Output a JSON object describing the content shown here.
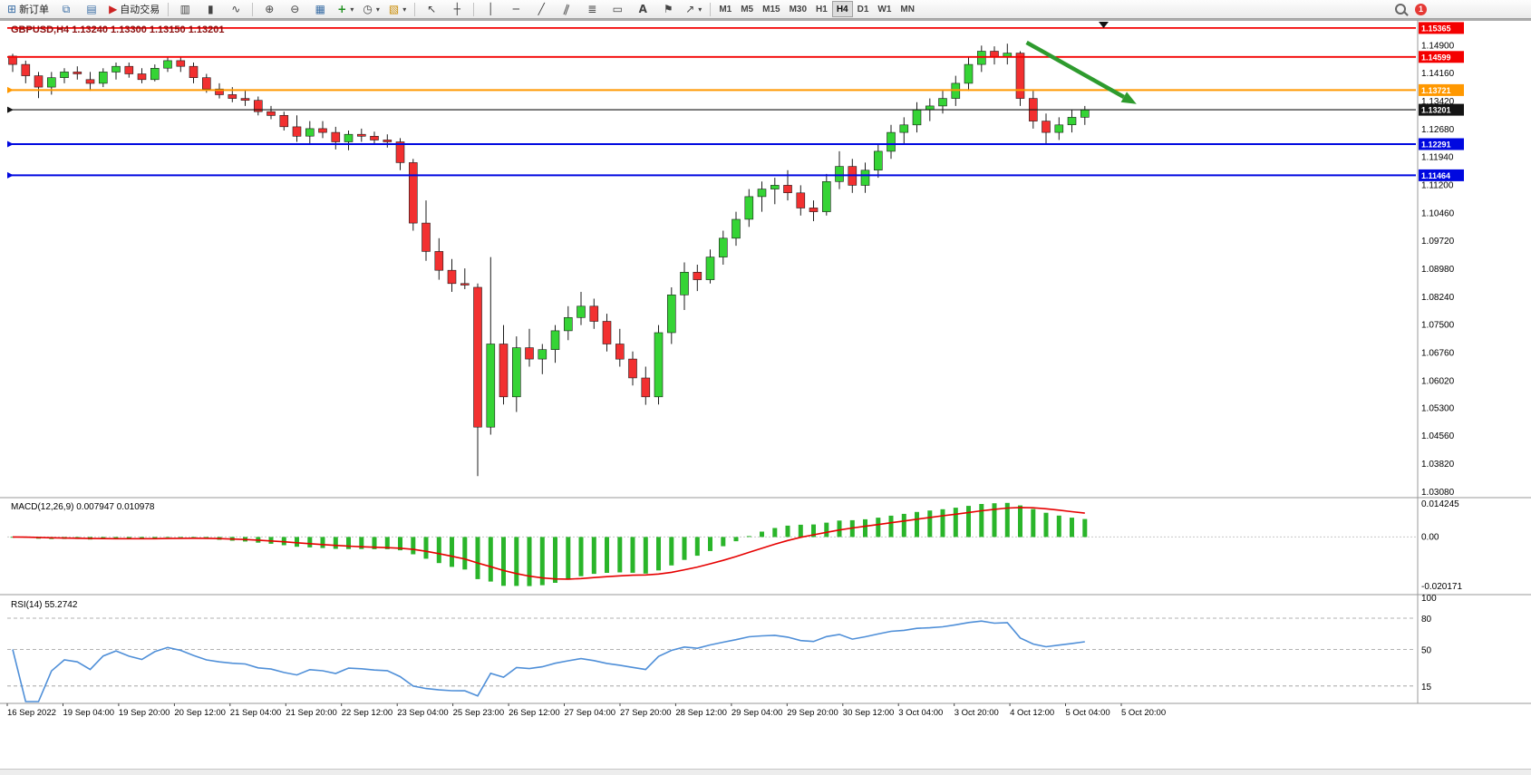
{
  "toolbar": {
    "new_order_label": "新订单",
    "autotrading_label": "自动交易",
    "timeframes": [
      "M1",
      "M5",
      "M15",
      "M30",
      "H1",
      "H4",
      "D1",
      "W1",
      "MN"
    ],
    "active_timeframe": "H4",
    "notification_badge": "1"
  },
  "icons": {
    "new_order": "⊞",
    "charts": "⧉",
    "data_window": "▤",
    "autotrading": "▶",
    "bar_chart": "▥",
    "candlestick_chart": "▮",
    "line_chart": "∿",
    "zoom_in": "⊕",
    "zoom_out": "⊖",
    "tile_windows": "▦",
    "indicators": "+",
    "periods": "◷",
    "templates": "▧",
    "dropdown": "▾",
    "cursor": "↖",
    "crosshair": "┼",
    "vline": "│",
    "hline": "─",
    "trendline": "╱",
    "channel": "∥",
    "fibonacci": "≣",
    "shapes": "▭",
    "text": "A",
    "label": "⚑",
    "arrows": "↗"
  },
  "chart_data": {
    "type": "candlestick",
    "symbol": "GBPUSD",
    "timeframe": "H4",
    "ohlc": {
      "open": "1.13240",
      "high": "1.13300",
      "low": "1.13150",
      "close": "1.13201"
    },
    "price_axis": {
      "max": 1.1553,
      "min": 1.0298
    },
    "price_axis_labels": [
      "1.14900",
      "1.14160",
      "1.13420",
      "1.12680",
      "1.11940",
      "1.11200",
      "1.10460",
      "1.09720",
      "1.08980",
      "1.08240",
      "1.07500",
      "1.06760",
      "1.06020",
      "1.05300",
      "1.04560",
      "1.03820",
      "1.03080"
    ],
    "hlines": [
      {
        "price": 1.15365,
        "label": "1.15365",
        "color": "#f40000",
        "width": 1.8,
        "left_marker": false
      },
      {
        "price": 1.14599,
        "label": "1.14599",
        "color": "#f40000",
        "width": 1.8,
        "left_marker": false
      },
      {
        "price": 1.13721,
        "label": "1.13721",
        "color": "#ff9800",
        "width": 2.0,
        "left_marker": true
      },
      {
        "price": 1.13201,
        "label": "1.13201",
        "color": "#141414",
        "width": 1.1,
        "left_marker": true
      },
      {
        "price": 1.12291,
        "label": "1.12291",
        "color": "#0008e0",
        "width": 2.0,
        "left_marker": true
      },
      {
        "price": 1.11464,
        "label": "1.11464",
        "color": "#0008e0",
        "width": 2.0,
        "left_marker": true
      }
    ],
    "candles": [
      [
        1.1462,
        1.1468,
        1.142,
        1.144
      ],
      [
        1.144,
        1.145,
        1.139,
        1.141
      ],
      [
        1.141,
        1.142,
        1.1351,
        1.138
      ],
      [
        1.138,
        1.142,
        1.136,
        1.1405
      ],
      [
        1.1405,
        1.143,
        1.139,
        1.142
      ],
      [
        1.142,
        1.1435,
        1.14,
        1.1415
      ],
      [
        1.14,
        1.142,
        1.137,
        1.139
      ],
      [
        1.139,
        1.143,
        1.138,
        1.142
      ],
      [
        1.142,
        1.1445,
        1.14,
        1.1435
      ],
      [
        1.1435,
        1.1445,
        1.1405,
        1.1415
      ],
      [
        1.1415,
        1.143,
        1.139,
        1.14
      ],
      [
        1.14,
        1.144,
        1.1395,
        1.143
      ],
      [
        1.143,
        1.146,
        1.142,
        1.145
      ],
      [
        1.145,
        1.146,
        1.142,
        1.1435
      ],
      [
        1.1435,
        1.1445,
        1.139,
        1.1405
      ],
      [
        1.1405,
        1.1415,
        1.1365,
        1.1375
      ],
      [
        1.1375,
        1.139,
        1.135,
        1.136
      ],
      [
        1.136,
        1.138,
        1.134,
        1.135
      ],
      [
        1.135,
        1.137,
        1.133,
        1.1345
      ],
      [
        1.1345,
        1.1355,
        1.1305,
        1.1315
      ],
      [
        1.1315,
        1.133,
        1.1295,
        1.1305
      ],
      [
        1.1305,
        1.1315,
        1.1265,
        1.1275
      ],
      [
        1.1275,
        1.1305,
        1.1235,
        1.125
      ],
      [
        1.125,
        1.129,
        1.123,
        1.127
      ],
      [
        1.127,
        1.129,
        1.1245,
        1.126
      ],
      [
        1.126,
        1.1275,
        1.1215,
        1.1235
      ],
      [
        1.1235,
        1.1265,
        1.1213,
        1.1255
      ],
      [
        1.1255,
        1.127,
        1.1235,
        1.125
      ],
      [
        1.125,
        1.1262,
        1.123,
        1.124
      ],
      [
        1.124,
        1.1255,
        1.122,
        1.1235
      ],
      [
        1.1235,
        1.1245,
        1.116,
        1.118
      ],
      [
        1.118,
        1.119,
        1.1,
        1.102
      ],
      [
        1.102,
        1.108,
        1.092,
        1.0945
      ],
      [
        1.0945,
        1.098,
        1.087,
        1.0895
      ],
      [
        1.0895,
        1.0925,
        1.0838,
        1.086
      ],
      [
        1.086,
        1.09,
        1.0845,
        1.0856
      ],
      [
        1.085,
        1.086,
        1.035,
        1.048
      ],
      [
        1.048,
        1.093,
        1.046,
        1.07
      ],
      [
        1.07,
        1.075,
        1.054,
        1.056
      ],
      [
        1.056,
        1.072,
        1.052,
        1.069
      ],
      [
        1.069,
        1.074,
        1.064,
        1.066
      ],
      [
        1.066,
        1.07,
        1.062,
        1.0685
      ],
      [
        1.0685,
        1.075,
        1.065,
        1.0735
      ],
      [
        1.0735,
        1.08,
        1.071,
        1.077
      ],
      [
        1.077,
        1.0838,
        1.075,
        1.08
      ],
      [
        1.08,
        1.082,
        1.074,
        1.076
      ],
      [
        1.076,
        1.078,
        1.068,
        1.07
      ],
      [
        1.07,
        1.074,
        1.064,
        1.066
      ],
      [
        1.066,
        1.068,
        1.059,
        1.061
      ],
      [
        1.061,
        1.064,
        1.0539,
        1.056
      ],
      [
        1.056,
        1.075,
        1.054,
        1.073
      ],
      [
        1.073,
        1.085,
        1.07,
        1.083
      ],
      [
        1.083,
        1.0916,
        1.079,
        1.089
      ],
      [
        1.089,
        1.091,
        1.084,
        1.087
      ],
      [
        1.087,
        1.095,
        1.086,
        1.093
      ],
      [
        1.093,
        1.1,
        1.091,
        1.098
      ],
      [
        1.098,
        1.105,
        1.096,
        1.103
      ],
      [
        1.103,
        1.111,
        1.101,
        1.109
      ],
      [
        1.109,
        1.113,
        1.105,
        1.111
      ],
      [
        1.111,
        1.114,
        1.107,
        1.112
      ],
      [
        1.112,
        1.116,
        1.108,
        1.11
      ],
      [
        1.11,
        1.112,
        1.104,
        1.106
      ],
      [
        1.106,
        1.108,
        1.1025,
        1.105
      ],
      [
        1.105,
        1.115,
        1.104,
        1.113
      ],
      [
        1.113,
        1.121,
        1.111,
        1.117
      ],
      [
        1.117,
        1.119,
        1.11,
        1.112
      ],
      [
        1.112,
        1.118,
        1.11,
        1.116
      ],
      [
        1.116,
        1.123,
        1.114,
        1.121
      ],
      [
        1.121,
        1.128,
        1.119,
        1.126
      ],
      [
        1.126,
        1.13,
        1.123,
        1.128
      ],
      [
        1.128,
        1.134,
        1.126,
        1.132
      ],
      [
        1.132,
        1.135,
        1.129,
        1.133
      ],
      [
        1.133,
        1.137,
        1.131,
        1.135
      ],
      [
        1.135,
        1.141,
        1.133,
        1.139
      ],
      [
        1.139,
        1.146,
        1.137,
        1.144
      ],
      [
        1.144,
        1.149,
        1.142,
        1.1475
      ],
      [
        1.1475,
        1.1488,
        1.144,
        1.146
      ],
      [
        1.146,
        1.1495,
        1.144,
        1.147
      ],
      [
        1.147,
        1.1475,
        1.133,
        1.135
      ],
      [
        1.135,
        1.137,
        1.127,
        1.129
      ],
      [
        1.129,
        1.131,
        1.1227,
        1.126
      ],
      [
        1.126,
        1.13,
        1.124,
        1.128
      ],
      [
        1.128,
        1.132,
        1.126,
        1.13
      ],
      [
        1.13,
        1.133,
        1.128,
        1.132
      ]
    ],
    "time_labels": [
      "16 Sep 2022",
      "19 Sep 04:00",
      "19 Sep 20:00",
      "20 Sep 12:00",
      "21 Sep 04:00",
      "21 Sep 20:00",
      "22 Sep 12:00",
      "23 Sep 04:00",
      "25 Sep 23:00",
      "26 Sep 12:00",
      "27 Sep 04:00",
      "27 Sep 20:00",
      "28 Sep 12:00",
      "29 Sep 04:00",
      "29 Sep 20:00",
      "30 Sep 12:00",
      "3 Oct 04:00",
      "3 Oct 20:00",
      "4 Oct 12:00",
      "5 Oct 04:00",
      "5 Oct 20:00"
    ],
    "annotation_arrow": {
      "x1_index": 78.5,
      "price1": 1.1498,
      "x2_index": 87,
      "price2": 1.1335,
      "color": "#2e9b2e"
    },
    "macd": {
      "label": "MACD(12,26,9)",
      "values_text": "0.007947 0.010978",
      "params": [
        12,
        26,
        9
      ],
      "axis_labels": [
        "0.014245",
        "0.00",
        "-0.020171"
      ]
    },
    "rsi": {
      "label": "RSI(14)",
      "value_text": "55.2742",
      "period": 14,
      "levels": [
        80,
        50,
        15
      ],
      "axis_labels": [
        "100",
        "80",
        "50",
        "15"
      ]
    },
    "colors": {
      "bull": "#35d435",
      "bear": "#f23030",
      "macd_hist": "#2ab52a",
      "macd_signal": "#e60000",
      "rsi_line": "#4f8fd8"
    }
  }
}
